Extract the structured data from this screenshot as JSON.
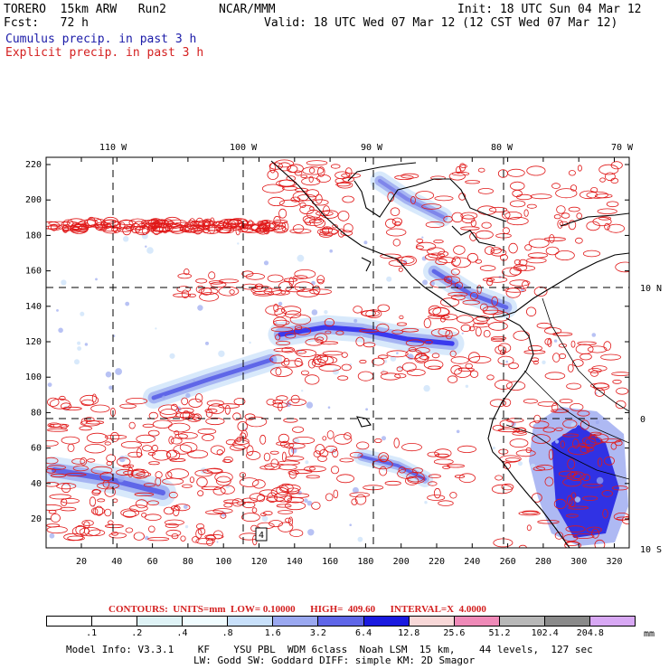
{
  "header": {
    "model": "TORERO  15km ARW   Run2",
    "org": "NCAR/MMM",
    "init": "Init: 18 UTC Sun 04 Mar 12",
    "fcst": "Fcst:   72 h",
    "valid": "Valid: 18 UTC Wed 07 Mar 12 (12 CST Wed 07 Mar 12)",
    "line_blue": "Cumulus precip. in past 3 h",
    "line_red": "Explicit precip. in past 3 h"
  },
  "map": {
    "top_labels": [
      "110 W",
      "100 W",
      "90 W",
      "80 W",
      "70 W"
    ],
    "right_labels": [
      "10 N",
      "0",
      "10 S"
    ],
    "y_ticks": [
      "220",
      "200",
      "180",
      "160",
      "140",
      "120",
      "100",
      "80",
      "60",
      "40",
      "20"
    ],
    "x_ticks": [
      "20",
      "40",
      "60",
      "80",
      "100",
      "120",
      "140",
      "160",
      "180",
      "200",
      "220",
      "240",
      "260",
      "280",
      "300",
      "320"
    ],
    "box_label": "4"
  },
  "contours": "CONTOURS:  UNITS=mm  LOW= 0.10000      HIGH=  409.60      INTERVAL=X  4.0000",
  "colorbar": {
    "labels": [
      ".1",
      ".2",
      ".4",
      ".8",
      "1.6",
      "3.2",
      "6.4",
      "12.8",
      "25.6",
      "51.2",
      "102.4",
      "204.8"
    ],
    "unit": "mm",
    "colors": [
      "#ffffff",
      "#ffffff",
      "#dff3f6",
      "#f0fcff",
      "#c8e0fa",
      "#9aa8f0",
      "#5f66e8",
      "#1a1ae0",
      "#f8d8d8",
      "#ef8ab8",
      "#b8b8b8",
      "#8a8a8a",
      "#d8a8f4"
    ]
  },
  "model_info": {
    "line1": "Model Info: V3.3.1    KF    YSU PBL  WDM 6class  Noah LSM  15 km,    44 levels,  127 sec",
    "line2": "LW: Godd SW: Goddard DIFF: simple KM: 2D Smagor"
  }
}
